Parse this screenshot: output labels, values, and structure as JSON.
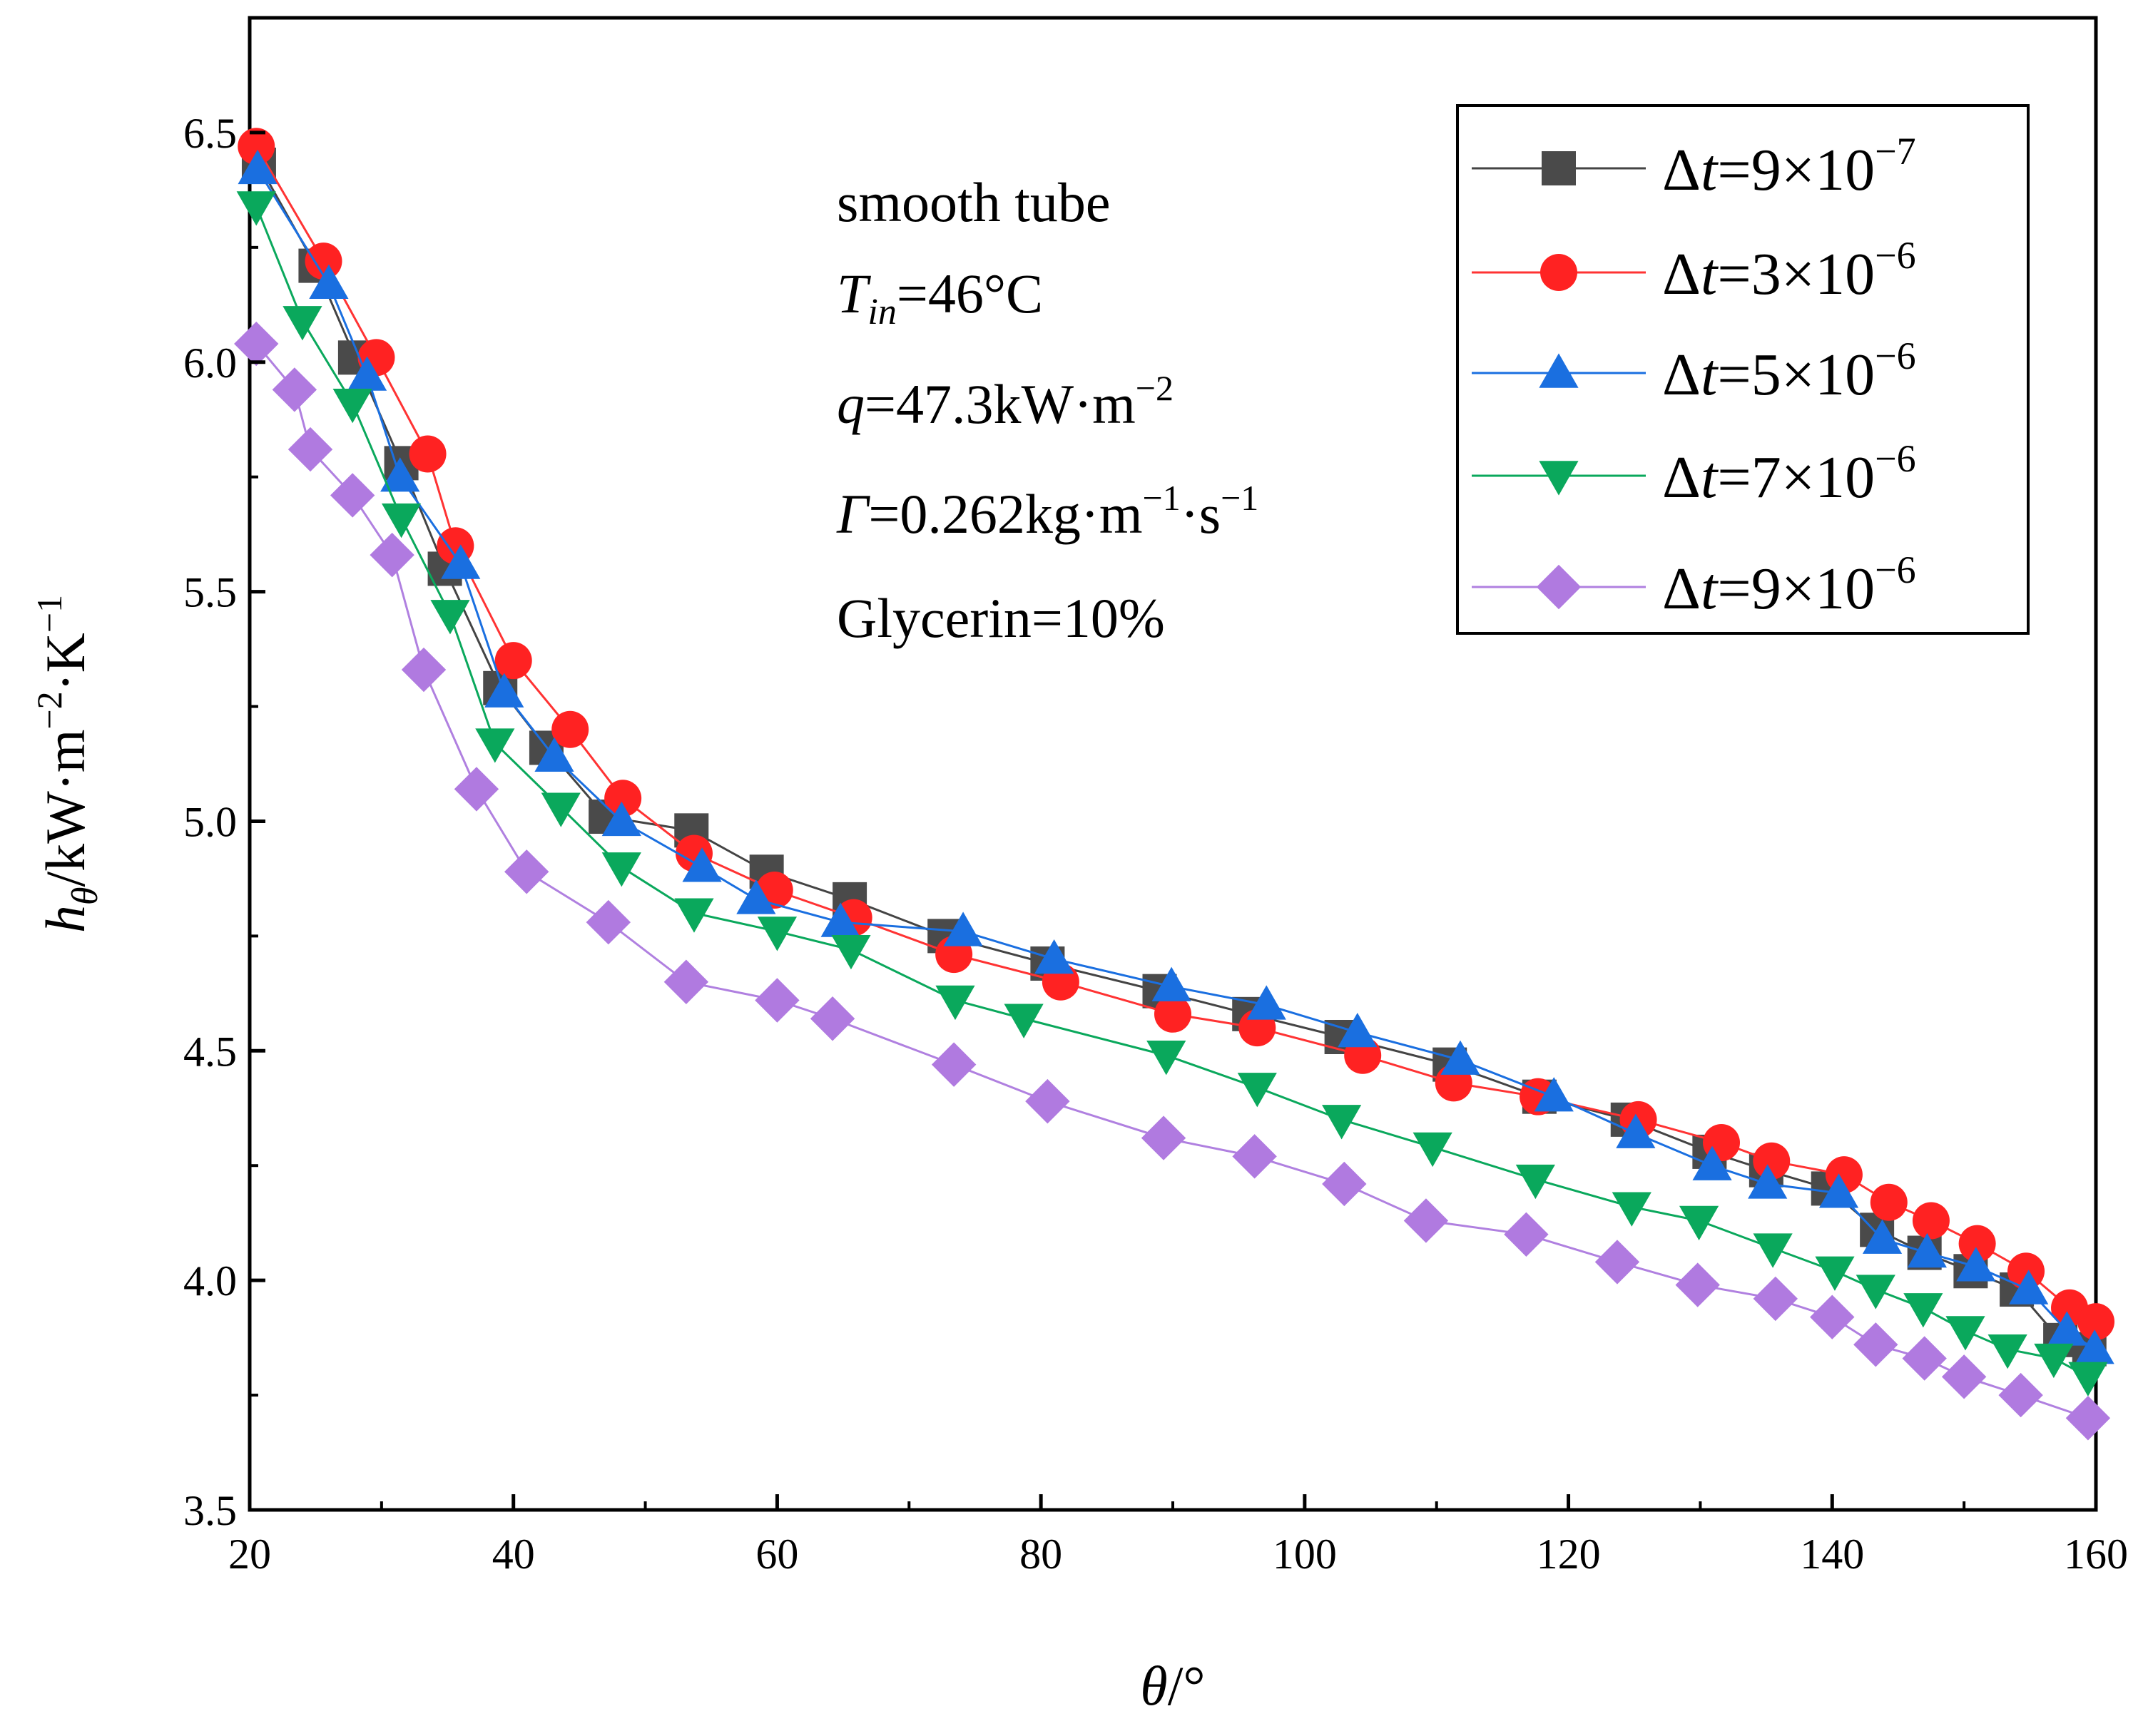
{
  "chart_data": {
    "type": "line",
    "title": "",
    "xlabel": {
      "symbol": "θ",
      "unit": "/°"
    },
    "ylabel": {
      "symbol": "h",
      "subscript": "θ",
      "unit": "/kW·m",
      "exp1": "−2",
      "mid": "·K",
      "exp2": "−1"
    },
    "xlim": [
      20,
      160
    ],
    "ylim": [
      3.5,
      6.75
    ],
    "x_ticks": [
      "20",
      "40",
      "60",
      "80",
      "100",
      "120",
      "140",
      "160"
    ],
    "y_ticks": [
      "3.5",
      "4.0",
      "4.5",
      "5.0",
      "5.5",
      "6.0",
      "6.5"
    ],
    "grid": false,
    "legend_position": "top-right",
    "annotations": {
      "line1": "smooth tube",
      "line2_symbol": "T",
      "line2_sub": "in",
      "line2_value": "=46°C",
      "line3_symbol": "q",
      "line3_value": "=47.3kW·m",
      "line3_exp": "−2",
      "line4_symbol": "Γ",
      "line4_value": "=0.262kg·m",
      "line4_exp1": "−1",
      "line4_mid": "·s",
      "line4_exp2": "−1",
      "line5": "Glycerin=10%"
    },
    "series": [
      {
        "name_prefix": "Δ",
        "name_var": "t",
        "name_value": "=9×10",
        "name_exp": "−7",
        "color": "#4a4a4a",
        "line_color": "#444444",
        "marker": "square",
        "x": [
          20.7,
          25,
          28,
          31.5,
          34.8,
          39,
          42.5,
          47,
          53.5,
          59.2,
          65.5,
          72.7,
          80.5,
          89,
          95.8,
          102.8,
          111,
          117.8,
          124.5,
          130.7,
          135,
          139.7,
          143.4,
          147,
          150.5,
          154,
          157.3,
          159.5
        ],
        "y": [
          6.43,
          6.21,
          6.01,
          5.78,
          5.55,
          5.29,
          5.16,
          5.01,
          4.98,
          4.89,
          4.83,
          4.75,
          4.69,
          4.63,
          4.58,
          4.53,
          4.47,
          4.4,
          4.35,
          4.28,
          4.24,
          4.2,
          4.11,
          4.06,
          4.02,
          3.98,
          3.87,
          3.85
        ]
      },
      {
        "name_prefix": "Δ",
        "name_var": "t",
        "name_value": "=3×10",
        "name_exp": "−6",
        "color": "#ff2222",
        "line_color": "#ff3333",
        "marker": "circle",
        "x": [
          20.5,
          25.6,
          29.6,
          33.5,
          35.6,
          40,
          44.3,
          48.3,
          53.7,
          59.8,
          65.8,
          73.4,
          81.5,
          90,
          96.4,
          104.4,
          111.3,
          117.7,
          125.3,
          131.6,
          135.4,
          140.9,
          144.3,
          147.5,
          151,
          154.7,
          158,
          160
        ],
        "y": [
          6.47,
          6.22,
          6.01,
          5.8,
          5.6,
          5.35,
          5.2,
          5.05,
          4.93,
          4.85,
          4.79,
          4.71,
          4.65,
          4.58,
          4.55,
          4.49,
          4.43,
          4.4,
          4.35,
          4.3,
          4.26,
          4.23,
          4.17,
          4.13,
          4.08,
          4.02,
          3.94,
          3.91
        ]
      },
      {
        "name_prefix": "Δ",
        "name_var": "t",
        "name_value": "=5×10",
        "name_exp": "−6",
        "color": "#1a6fe0",
        "line_color": "#1a6fe0",
        "marker": "triangle-up",
        "x": [
          20.6,
          26,
          28.9,
          31.4,
          36,
          39.3,
          43.1,
          48.2,
          54.3,
          58.4,
          64.8,
          74.1,
          81,
          89.9,
          97.1,
          104,
          111.8,
          118.9,
          125.1,
          130.9,
          135.1,
          140.5,
          143.8,
          147.2,
          150.9,
          154.9,
          157.8,
          159.9
        ],
        "y": [
          6.42,
          6.17,
          5.97,
          5.75,
          5.56,
          5.28,
          5.14,
          5.0,
          4.9,
          4.83,
          4.78,
          4.76,
          4.7,
          4.64,
          4.6,
          4.54,
          4.48,
          4.4,
          4.32,
          4.25,
          4.21,
          4.19,
          4.09,
          4.06,
          4.03,
          3.98,
          3.89,
          3.85
        ]
      },
      {
        "name_prefix": "Δ",
        "name_var": "t",
        "name_value": "=7×10",
        "name_exp": "−6",
        "color": "#0aa85c",
        "line_color": "#0aa85c",
        "marker": "triangle-down",
        "x": [
          20.5,
          24,
          27.8,
          31.5,
          35.2,
          38.6,
          43.6,
          48.2,
          53.7,
          60,
          65.6,
          73.5,
          78.7,
          89.5,
          96.4,
          102.8,
          109.7,
          117.5,
          124.8,
          129.9,
          135.5,
          140.2,
          143.3,
          146.9,
          150.1,
          153.3,
          156.8,
          159.4
        ],
        "y": [
          6.34,
          6.09,
          5.91,
          5.66,
          5.45,
          5.17,
          5.03,
          4.9,
          4.8,
          4.76,
          4.72,
          4.61,
          4.57,
          4.49,
          4.42,
          4.35,
          4.29,
          4.22,
          4.16,
          4.13,
          4.07,
          4.02,
          3.98,
          3.94,
          3.89,
          3.85,
          3.83,
          3.79
        ]
      },
      {
        "name_prefix": "Δ",
        "name_var": "t",
        "name_value": "=9×10",
        "name_exp": "−6",
        "color": "#b07ae0",
        "line_color": "#b080e0",
        "marker": "diamond",
        "x": [
          20.5,
          23.4,
          24.6,
          27.8,
          30.8,
          33.2,
          37.2,
          41,
          47.2,
          53.1,
          60,
          64.2,
          73.4,
          80.5,
          89.3,
          96.2,
          103,
          109.2,
          116.8,
          123.7,
          129.8,
          135.7,
          140,
          143.3,
          147,
          150,
          154.3,
          159.4
        ],
        "y": [
          6.04,
          5.94,
          5.81,
          5.71,
          5.58,
          5.33,
          5.07,
          4.89,
          4.78,
          4.65,
          4.61,
          4.57,
          4.47,
          4.39,
          4.31,
          4.27,
          4.21,
          4.13,
          4.1,
          4.04,
          3.99,
          3.96,
          3.92,
          3.86,
          3.83,
          3.79,
          3.75,
          3.7
        ]
      }
    ]
  }
}
